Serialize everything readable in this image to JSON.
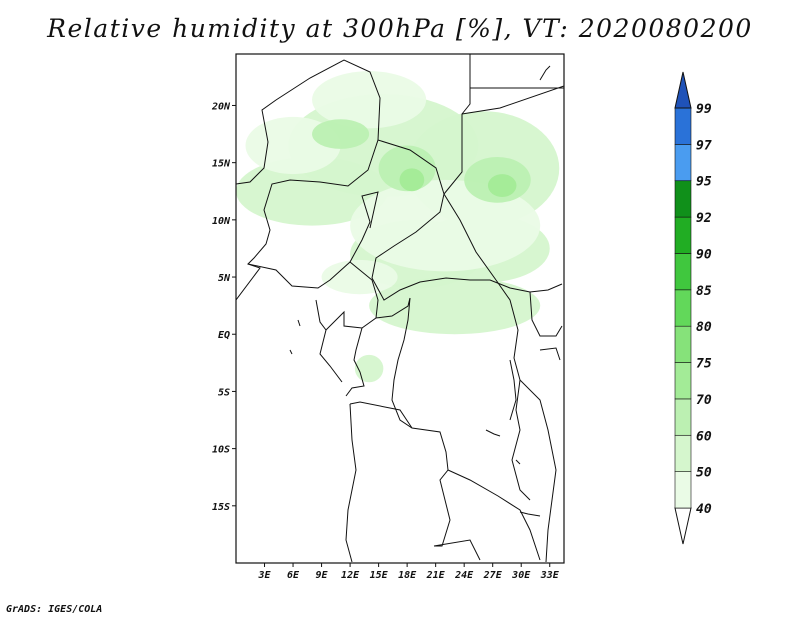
{
  "title": "Relative humidity at 300hPa [%], VT: 2020080200",
  "credit": "GrADS: IGES/COLA",
  "map": {
    "lon_range": [
      0,
      34.5
    ],
    "lat_range": [
      -20,
      24.5
    ],
    "lat_ticks": [
      {
        "value": 20,
        "label": "20N"
      },
      {
        "value": 15,
        "label": "15N"
      },
      {
        "value": 10,
        "label": "10N"
      },
      {
        "value": 5,
        "label": "5N"
      },
      {
        "value": 0,
        "label": "EQ"
      },
      {
        "value": -5,
        "label": "5S"
      },
      {
        "value": -10,
        "label": "10S"
      },
      {
        "value": -15,
        "label": "15S"
      }
    ],
    "lon_ticks": [
      {
        "value": 3,
        "label": "3E"
      },
      {
        "value": 6,
        "label": "6E"
      },
      {
        "value": 9,
        "label": "9E"
      },
      {
        "value": 12,
        "label": "12E"
      },
      {
        "value": 15,
        "label": "15E"
      },
      {
        "value": 18,
        "label": "18E"
      },
      {
        "value": 21,
        "label": "21E"
      },
      {
        "value": 24,
        "label": "24E"
      },
      {
        "value": 27,
        "label": "27E"
      },
      {
        "value": 30,
        "label": "30E"
      },
      {
        "value": 33,
        "label": "33E"
      }
    ]
  },
  "colorbar": {
    "levels": [
      "40",
      "50",
      "60",
      "70",
      "75",
      "80",
      "85",
      "90",
      "92",
      "95",
      "97",
      "99"
    ],
    "colors": [
      "#ffffff",
      "#eafbe6",
      "#d5f6cd",
      "#bcf0b2",
      "#a3eb97",
      "#86e27a",
      "#62d85a",
      "#40c73e",
      "#21ad23",
      "#10901a",
      "#4a9cf0",
      "#2a72d8",
      "#1f52b8"
    ]
  },
  "humidity_patches": [
    {
      "lon": 15.5,
      "lat": 16.5,
      "rx": 10,
      "ry": 4.5,
      "level": 2
    },
    {
      "lon": 26,
      "lat": 14.5,
      "rx": 8,
      "ry": 5,
      "level": 2
    },
    {
      "lon": 8,
      "lat": 12.5,
      "rx": 8,
      "ry": 3,
      "level": 2
    },
    {
      "lon": 19,
      "lat": 7,
      "rx": 7,
      "ry": 3,
      "level": 2
    },
    {
      "lon": 26,
      "lat": 7.5,
      "rx": 7,
      "ry": 3,
      "level": 2
    },
    {
      "lon": 23,
      "lat": 2.5,
      "rx": 9,
      "ry": 2.5,
      "level": 2
    },
    {
      "lon": 14,
      "lat": 20.5,
      "rx": 6,
      "ry": 2.5,
      "level": 1
    },
    {
      "lon": 22,
      "lat": 9.5,
      "rx": 10,
      "ry": 4,
      "level": 1
    },
    {
      "lon": 6,
      "lat": 16.5,
      "rx": 5,
      "ry": 2.5,
      "level": 1
    },
    {
      "lon": 13,
      "lat": 5,
      "rx": 4,
      "ry": 1.5,
      "level": 1
    },
    {
      "lon": 18,
      "lat": 14.5,
      "rx": 3,
      "ry": 2,
      "level": 3
    },
    {
      "lon": 27.5,
      "lat": 13.5,
      "rx": 3.5,
      "ry": 2,
      "level": 3
    },
    {
      "lon": 11,
      "lat": 17.5,
      "rx": 3,
      "ry": 1.3,
      "level": 3
    },
    {
      "lon": 18.5,
      "lat": 13.5,
      "rx": 1.3,
      "ry": 1,
      "level": 4
    },
    {
      "lon": 28,
      "lat": 13,
      "rx": 1.5,
      "ry": 1,
      "level": 4
    },
    {
      "lon": 14,
      "lat": -3,
      "rx": 1.5,
      "ry": 1.2,
      "level": 2
    }
  ]
}
